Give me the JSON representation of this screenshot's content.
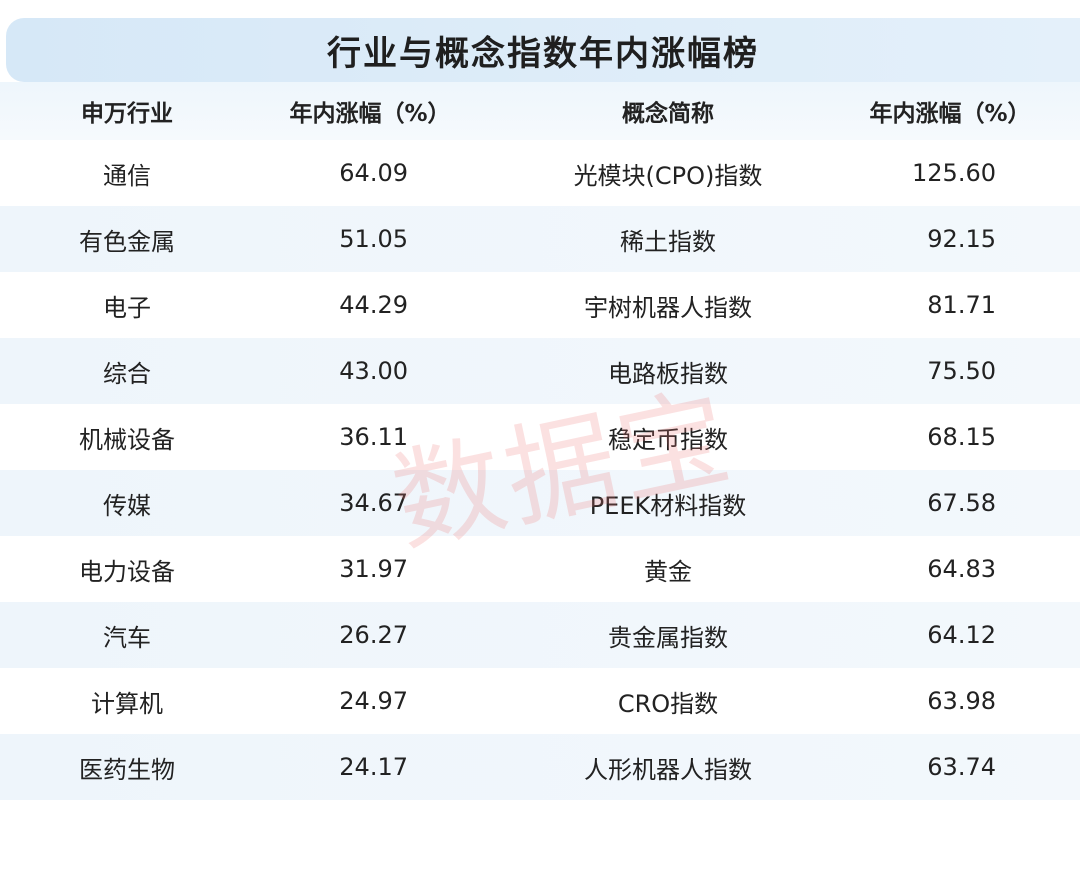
{
  "title": "行业与概念指数年内涨幅榜",
  "headers": [
    "申万行业",
    "年内涨幅（%）",
    "概念简称",
    "年内涨幅（%）"
  ],
  "rows": [
    {
      "industry": "通信",
      "industry_gain": "64.09",
      "concept": "光模块(CPO)指数",
      "concept_gain": "125.60"
    },
    {
      "industry": "有色金属",
      "industry_gain": "51.05",
      "concept": "稀土指数",
      "concept_gain": "92.15"
    },
    {
      "industry": "电子",
      "industry_gain": "44.29",
      "concept": "宇树机器人指数",
      "concept_gain": "81.71"
    },
    {
      "industry": "综合",
      "industry_gain": "43.00",
      "concept": "电路板指数",
      "concept_gain": "75.50"
    },
    {
      "industry": "机械设备",
      "industry_gain": "36.11",
      "concept": "稳定币指数",
      "concept_gain": "68.15"
    },
    {
      "industry": "传媒",
      "industry_gain": "34.67",
      "concept": "PEEK材料指数",
      "concept_gain": "67.58"
    },
    {
      "industry": "电力设备",
      "industry_gain": "31.97",
      "concept": "黄金",
      "concept_gain": "64.83"
    },
    {
      "industry": "汽车",
      "industry_gain": "26.27",
      "concept": "贵金属指数",
      "concept_gain": "64.12"
    },
    {
      "industry": "计算机",
      "industry_gain": "24.97",
      "concept": "CRO指数",
      "concept_gain": "63.98"
    },
    {
      "industry": "医药生物",
      "industry_gain": "24.17",
      "concept": "人形机器人指数",
      "concept_gain": "63.74"
    }
  ],
  "watermark": "数据宝",
  "colors": {
    "title_bg": "#d6e8f7",
    "stripe": "#eef5fb",
    "watermark": "#ec7878"
  }
}
